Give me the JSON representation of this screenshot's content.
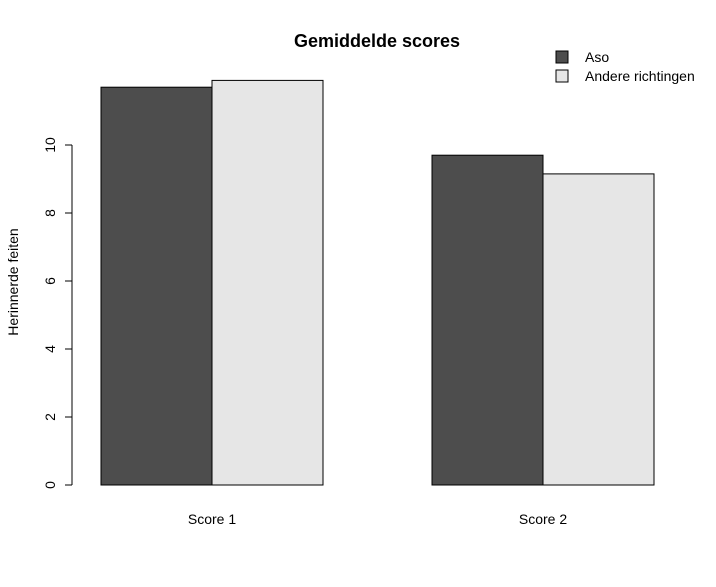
{
  "chart_data": {
    "type": "bar",
    "title": "Gemiddelde scores",
    "xlabel": "",
    "ylabel": "Herinnerde feiten",
    "categories": [
      "Score 1",
      "Score 2"
    ],
    "series": [
      {
        "name": "Aso",
        "values": [
          11.7,
          9.7
        ],
        "color": "#4d4d4d"
      },
      {
        "name": "Andere richtingen",
        "values": [
          11.9,
          9.15
        ],
        "color": "#e6e6e6"
      }
    ],
    "ylim": [
      0,
      12
    ],
    "yticks": [
      0,
      2,
      4,
      6,
      8,
      10
    ],
    "ytick_labels": [
      "0",
      "2",
      "4",
      "6",
      "8",
      "10"
    ],
    "grid": false,
    "legend": "top-right"
  }
}
